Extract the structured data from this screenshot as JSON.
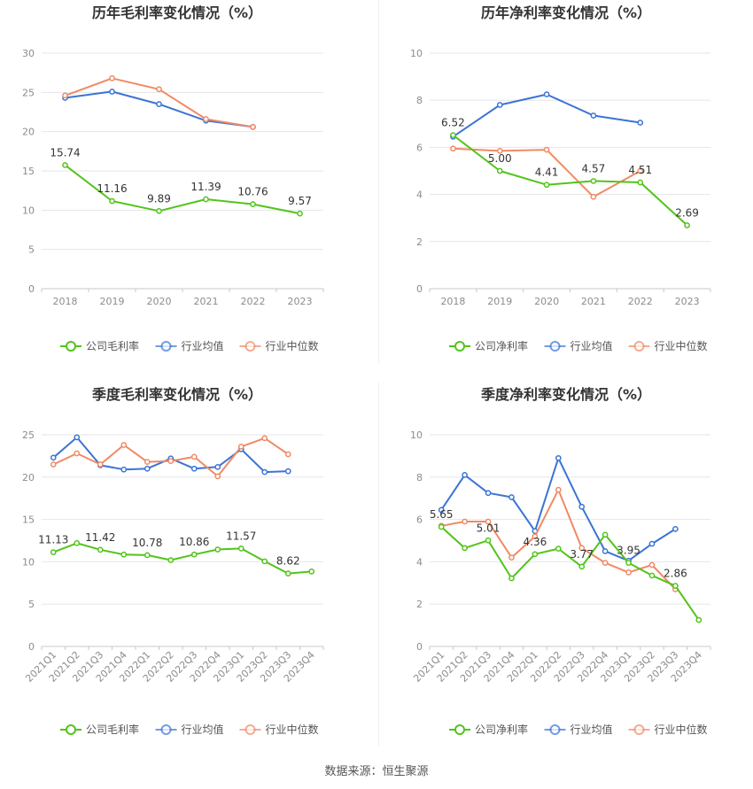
{
  "source": "数据来源：恒生聚源",
  "colors": {
    "company": "#52c41a",
    "industry_avg": "#3b74d6",
    "industry_median": "#f08a64",
    "grid": "#e6e6e6",
    "axis_text": "#8c8c8c",
    "label_text": "#333333"
  },
  "chart_data": [
    {
      "type": "line",
      "title": "历年毛利率变化情况（%）",
      "categories": [
        "2018",
        "2019",
        "2020",
        "2021",
        "2022",
        "2023"
      ],
      "ylim": [
        0,
        30
      ],
      "yticks": [
        0,
        5,
        10,
        15,
        20,
        25,
        30
      ],
      "grid": true,
      "legend_position": "bottom",
      "series": [
        {
          "name": "公司毛利率",
          "role": "company",
          "values": [
            15.74,
            11.16,
            9.89,
            11.39,
            10.76,
            9.57
          ]
        },
        {
          "name": "行业均值",
          "role": "industry_avg",
          "values": [
            24.3,
            25.1,
            23.5,
            21.4,
            20.6,
            null
          ]
        },
        {
          "name": "行业中位数",
          "role": "industry_median",
          "values": [
            24.6,
            26.8,
            25.4,
            21.6,
            20.6,
            null
          ]
        }
      ],
      "data_labels": [
        "15.74",
        "11.16",
        "9.89",
        "11.39",
        "10.76",
        "9.57"
      ]
    },
    {
      "type": "line",
      "title": "历年净利率变化情况（%）",
      "categories": [
        "2018",
        "2019",
        "2020",
        "2021",
        "2022",
        "2023"
      ],
      "ylim": [
        0,
        10
      ],
      "yticks": [
        0,
        2,
        4,
        6,
        8,
        10
      ],
      "grid": true,
      "legend_position": "bottom",
      "series": [
        {
          "name": "公司净利率",
          "role": "company",
          "values": [
            6.52,
            5.0,
            4.41,
            4.57,
            4.51,
            2.69
          ]
        },
        {
          "name": "行业均值",
          "role": "industry_avg",
          "values": [
            6.45,
            7.8,
            8.25,
            7.35,
            7.05,
            null
          ]
        },
        {
          "name": "行业中位数",
          "role": "industry_median",
          "values": [
            5.95,
            5.85,
            5.9,
            3.9,
            5.0,
            null
          ]
        }
      ],
      "data_labels": [
        "6.52",
        "5.00",
        "4.41",
        "4.57",
        "4.51",
        "2.69"
      ]
    },
    {
      "type": "line",
      "title": "季度毛利率变化情况（%）",
      "categories": [
        "2021Q1",
        "2021Q2",
        "2021Q3",
        "2021Q4",
        "2022Q1",
        "2022Q2",
        "2022Q3",
        "2022Q4",
        "2023Q1",
        "2023Q2",
        "2023Q3",
        "2023Q4"
      ],
      "ylim": [
        0,
        25
      ],
      "yticks": [
        0,
        5,
        10,
        15,
        20,
        25
      ],
      "grid": true,
      "legend_position": "bottom",
      "series": [
        {
          "name": "公司毛利率",
          "role": "company",
          "values": [
            11.13,
            12.2,
            11.42,
            10.85,
            10.78,
            10.2,
            10.86,
            11.45,
            11.57,
            10.05,
            8.62,
            8.85
          ]
        },
        {
          "name": "行业均值",
          "role": "industry_avg",
          "values": [
            22.3,
            24.7,
            21.4,
            20.9,
            21.0,
            22.2,
            21.0,
            21.2,
            23.3,
            20.6,
            20.7,
            null
          ]
        },
        {
          "name": "行业中位数",
          "role": "industry_median",
          "values": [
            21.5,
            22.8,
            21.5,
            23.8,
            21.8,
            21.9,
            22.4,
            20.1,
            23.6,
            24.6,
            22.7,
            null
          ]
        }
      ],
      "data_labels": [
        "11.13",
        "",
        "11.42",
        "",
        "10.78",
        "",
        "10.86",
        "",
        "11.57",
        "",
        "8.62",
        ""
      ]
    },
    {
      "type": "line",
      "title": "季度净利率变化情况（%）",
      "categories": [
        "2021Q1",
        "2021Q2",
        "2021Q3",
        "2021Q4",
        "2022Q1",
        "2022Q2",
        "2022Q3",
        "2022Q4",
        "2023Q1",
        "2023Q2",
        "2023Q3",
        "2023Q4"
      ],
      "ylim": [
        0,
        10
      ],
      "yticks": [
        0,
        2,
        4,
        6,
        8,
        10
      ],
      "grid": true,
      "legend_position": "bottom",
      "series": [
        {
          "name": "公司净利率",
          "role": "company",
          "values": [
            5.65,
            4.65,
            5.01,
            3.22,
            4.36,
            4.62,
            3.77,
            5.28,
            3.95,
            3.35,
            2.86,
            1.25
          ]
        },
        {
          "name": "行业均值",
          "role": "industry_avg",
          "values": [
            6.45,
            8.1,
            7.25,
            7.05,
            5.45,
            8.9,
            6.6,
            4.5,
            4.05,
            4.85,
            5.55,
            null
          ]
        },
        {
          "name": "行业中位数",
          "role": "industry_median",
          "values": [
            5.7,
            5.9,
            5.9,
            4.2,
            5.2,
            7.4,
            4.65,
            3.95,
            3.5,
            3.85,
            2.7,
            null
          ]
        }
      ],
      "data_labels": [
        "5.65",
        "",
        "5.01",
        "",
        "4.36",
        "",
        "3.77",
        "",
        "3.95",
        "",
        "2.86",
        ""
      ]
    }
  ]
}
